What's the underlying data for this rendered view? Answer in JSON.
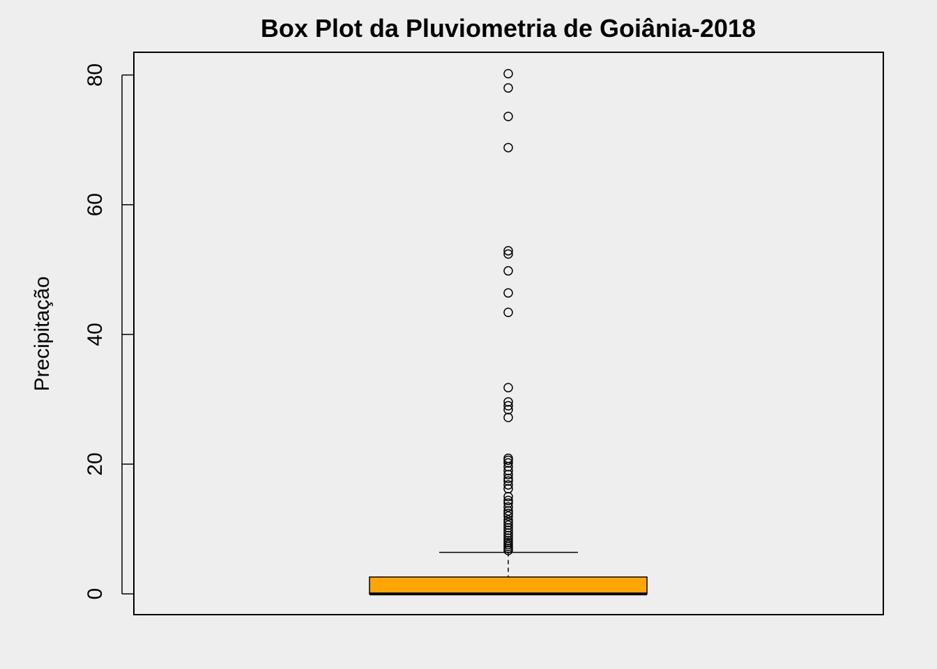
{
  "chart_data": {
    "type": "box",
    "title": "Box Plot da Pluviometria de Goiânia-2018",
    "xlabel": "",
    "ylabel": "Precipitação",
    "ylim": [
      -3.2,
      83.5
    ],
    "yticks": [
      0,
      20,
      40,
      60,
      80
    ],
    "ytick_labels": [
      "0",
      "20",
      "40",
      "60",
      "80"
    ],
    "grid": false,
    "legend": "none",
    "box": {
      "min": 0,
      "q1": 0,
      "median": 0,
      "q3": 2.6,
      "whisker_low": 0,
      "whisker_high": 6.4,
      "fill_color": "#FFA500"
    },
    "outliers": [
      6.7,
      7.0,
      7.3,
      7.6,
      7.9,
      8.2,
      8.6,
      9.0,
      9.4,
      9.8,
      10.2,
      10.6,
      11.0,
      11.4,
      12.0,
      12.4,
      12.8,
      13.4,
      14.0,
      14.4,
      15.0,
      16.2,
      16.8,
      17.4,
      17.8,
      18.4,
      19.0,
      19.6,
      20.2,
      20.6,
      20.9,
      27.2,
      28.4,
      29.0,
      29.6,
      31.8,
      43.4,
      46.4,
      49.8,
      52.4,
      52.9,
      68.8,
      73.6,
      78.0,
      80.2
    ]
  }
}
